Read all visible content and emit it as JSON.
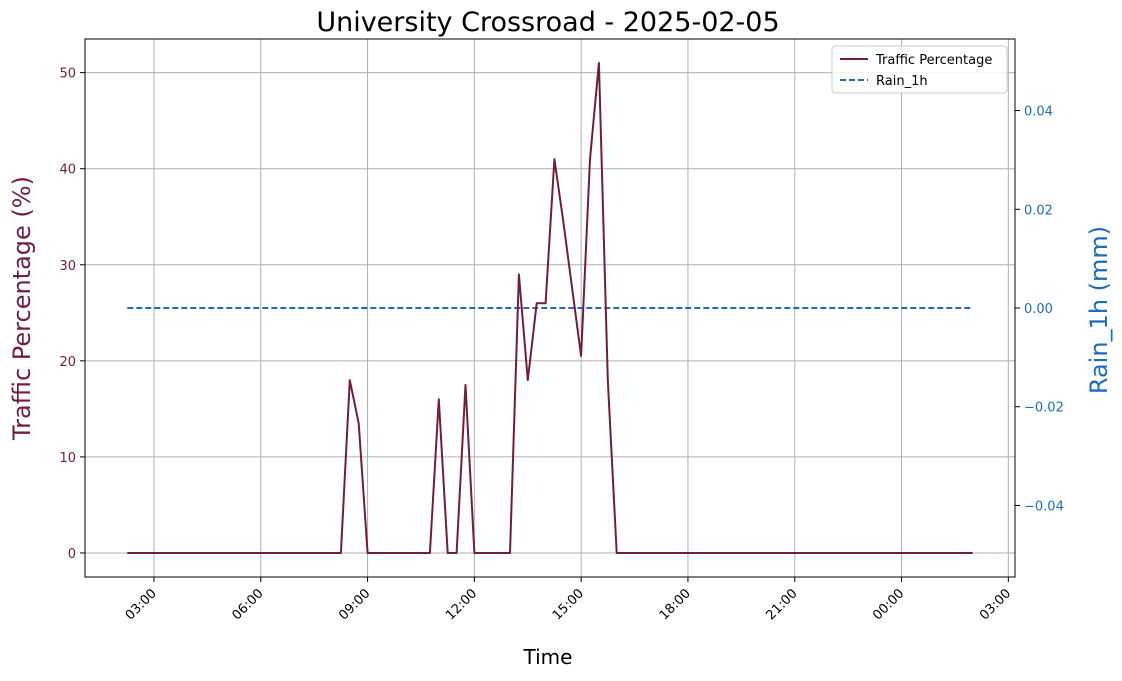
{
  "chart_data": {
    "type": "line",
    "title": "University Crossroad - 2025-02-05",
    "xlabel": "Time",
    "ylabel_left": "Traffic Percentage (%)",
    "ylabel_right": "Rain_1h (mm)",
    "x_ticks": [
      "03:00",
      "06:00",
      "09:00",
      "12:00",
      "15:00",
      "18:00",
      "21:00",
      "00:00",
      "03:00"
    ],
    "y_left_ticks": [
      "0",
      "10",
      "20",
      "30",
      "40",
      "50"
    ],
    "y_right_ticks": [
      "−0.04",
      "−0.02",
      "0.00",
      "0.02",
      "0.04"
    ],
    "y_left_lim": [
      -2.5,
      53.5
    ],
    "y_right_lim": [
      -0.0545,
      0.0545
    ],
    "grid": true,
    "legend_position": "top-right",
    "colors": {
      "traffic": "#6d1f3f",
      "rain": "#1f6bb5",
      "grid": "#b0b0b0"
    },
    "series": [
      {
        "name": "Traffic Percentage",
        "axis": "left",
        "style": "solid",
        "x": [
          "02:15",
          "08:15",
          "08:30",
          "08:45",
          "09:00",
          "10:45",
          "11:00",
          "11:15",
          "11:30",
          "11:45",
          "12:00",
          "13:00",
          "13:15",
          "13:30",
          "13:45",
          "14:00",
          "14:15",
          "14:30",
          "14:45",
          "15:00",
          "15:15",
          "15:30",
          "15:45",
          "16:00",
          "02:00"
        ],
        "y": [
          0,
          0,
          18,
          13.5,
          0,
          0,
          16,
          0,
          0,
          17.5,
          0,
          0,
          29,
          18,
          26,
          26,
          41,
          34.5,
          27.5,
          20.5,
          41,
          51,
          18,
          0,
          0
        ]
      },
      {
        "name": "Rain_1h",
        "axis": "right",
        "style": "dashed",
        "x": [
          "02:15",
          "02:00"
        ],
        "y": [
          0,
          0
        ]
      }
    ]
  }
}
